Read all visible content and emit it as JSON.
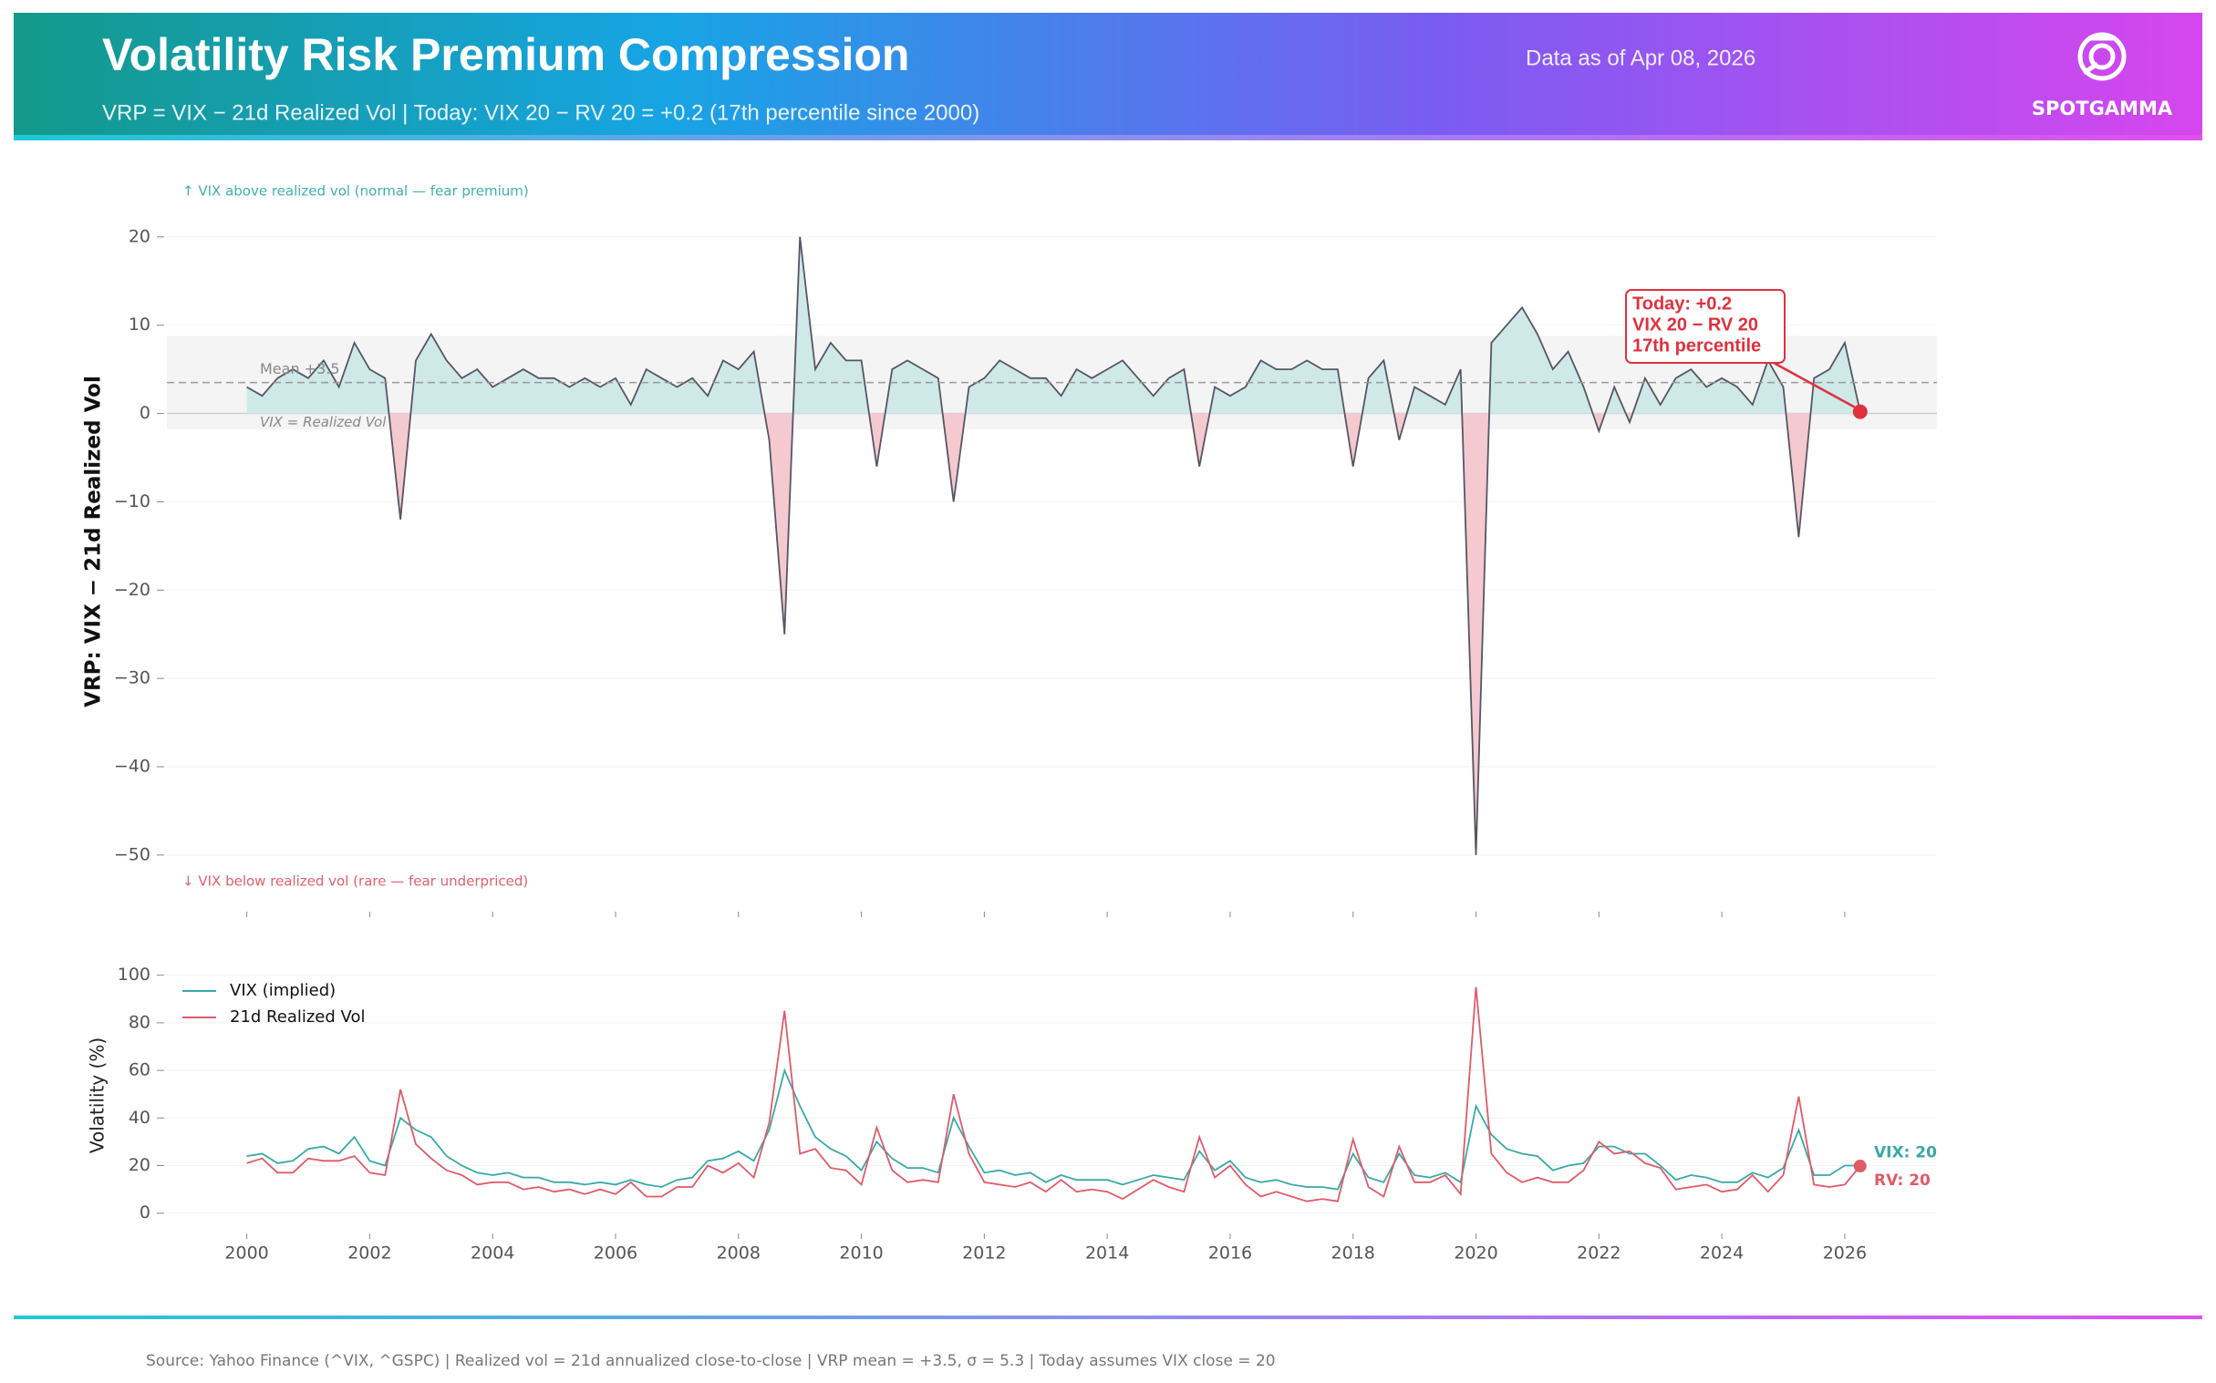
{
  "header": {
    "title": "Volatility Risk Premium Compression",
    "subtitle": "VRP = VIX − 21d Realized Vol | Today: VIX 20 − RV 20 = +0.2 (17th percentile since 2000)",
    "date": "Data as of Apr 08, 2026",
    "logo": "SPOTGAMMA"
  },
  "chart_data": [
    {
      "type": "area",
      "y_label": "VRP: VIX − 21d Realized Vol",
      "color": "#565663",
      "fill_above": "#cfe8e8",
      "fill_below": "#f4c9cf",
      "xlim": [
        1998.7,
        2027.5
      ],
      "ylim": [
        -56,
        27
      ],
      "xticks": [
        2000,
        2002,
        2004,
        2006,
        2008,
        2010,
        2012,
        2014,
        2016,
        2018,
        2020,
        2022,
        2024,
        2026
      ],
      "yticks": [
        {
          "value": -50,
          "label": "−50"
        },
        {
          "value": -40,
          "label": "−40"
        },
        {
          "value": -30,
          "label": "−30"
        },
        {
          "value": -20,
          "label": "−20"
        },
        {
          "value": -10,
          "label": "−10"
        },
        0,
        10,
        20
      ],
      "grid": true,
      "sigma_band": [
        -1.8,
        8.8
      ],
      "mean_line": {
        "value": 3.5,
        "label": "Mean +3.5"
      },
      "zero_label": "VIX = Realized Vol",
      "note_above": "↑ VIX above realized vol (normal — fear premium)",
      "note_below": "↓ VIX below realized vol (rare — fear underpriced)",
      "today": {
        "x": 2026.25,
        "value": 0.2,
        "lines": [
          "Today: +0.2",
          "VIX 20 − RV 20",
          "17th percentile"
        ],
        "color": "#e0303f"
      },
      "x": [
        2000,
        2000.25,
        2000.5,
        2000.75,
        2001,
        2001.25,
        2001.5,
        2001.75,
        2002,
        2002.25,
        2002.5,
        2002.75,
        2003,
        2003.25,
        2003.5,
        2003.75,
        2004,
        2004.25,
        2004.5,
        2004.75,
        2005,
        2005.25,
        2005.5,
        2005.75,
        2006,
        2006.25,
        2006.5,
        2006.75,
        2007,
        2007.25,
        2007.5,
        2007.75,
        2008,
        2008.25,
        2008.5,
        2008.75,
        2009,
        2009.25,
        2009.5,
        2009.75,
        2010,
        2010.25,
        2010.5,
        2010.75,
        2011,
        2011.25,
        2011.5,
        2011.75,
        2012,
        2012.25,
        2012.5,
        2012.75,
        2013,
        2013.25,
        2013.5,
        2013.75,
        2014,
        2014.25,
        2014.5,
        2014.75,
        2015,
        2015.25,
        2015.5,
        2015.75,
        2016,
        2016.25,
        2016.5,
        2016.75,
        2017,
        2017.25,
        2017.5,
        2017.75,
        2018,
        2018.25,
        2018.5,
        2018.75,
        2019,
        2019.25,
        2019.5,
        2019.75,
        2020,
        2020.25,
        2020.5,
        2020.75,
        2021,
        2021.25,
        2021.5,
        2021.75,
        2022,
        2022.25,
        2022.5,
        2022.75,
        2023,
        2023.25,
        2023.5,
        2023.75,
        2024,
        2024.25,
        2024.5,
        2024.75,
        2025,
        2025.25,
        2025.5,
        2025.75,
        2026,
        2026.25
      ],
      "values": [
        3,
        2,
        4,
        5,
        4,
        6,
        3,
        8,
        5,
        4,
        -12,
        6,
        9,
        6,
        4,
        5,
        3,
        4,
        5,
        4,
        4,
        3,
        4,
        3,
        4,
        1,
        5,
        4,
        3,
        4,
        2,
        6,
        5,
        7,
        -3,
        -25,
        20,
        5,
        8,
        6,
        6,
        -6,
        5,
        6,
        5,
        4,
        -10,
        3,
        4,
        6,
        5,
        4,
        4,
        2,
        5,
        4,
        5,
        6,
        4,
        2,
        4,
        5,
        -6,
        3,
        2,
        3,
        6,
        5,
        5,
        6,
        5,
        5,
        -6,
        4,
        6,
        -3,
        3,
        2,
        1,
        5,
        -50,
        8,
        10,
        12,
        9,
        5,
        7,
        3,
        -2,
        3,
        -1,
        4,
        1,
        4,
        5,
        3,
        4,
        3,
        1,
        6,
        3,
        -14,
        4,
        5,
        8,
        0.2
      ]
    },
    {
      "type": "line",
      "y_label": "Volatility (%)",
      "xlim": [
        1998.7,
        2027.5
      ],
      "ylim": [
        -7,
        106
      ],
      "xticks": [
        2000,
        2002,
        2004,
        2006,
        2008,
        2010,
        2012,
        2014,
        2016,
        2018,
        2020,
        2022,
        2024,
        2026
      ],
      "yticks": [
        0,
        20,
        40,
        60,
        80,
        100
      ],
      "grid": true,
      "legend": "upper left",
      "end_labels": [
        "VIX: 20",
        "RV: 20"
      ],
      "x": [
        2000,
        2000.25,
        2000.5,
        2000.75,
        2001,
        2001.25,
        2001.5,
        2001.75,
        2002,
        2002.25,
        2002.5,
        2002.75,
        2003,
        2003.25,
        2003.5,
        2003.75,
        2004,
        2004.25,
        2004.5,
        2004.75,
        2005,
        2005.25,
        2005.5,
        2005.75,
        2006,
        2006.25,
        2006.5,
        2006.75,
        2007,
        2007.25,
        2007.5,
        2007.75,
        2008,
        2008.25,
        2008.5,
        2008.75,
        2009,
        2009.25,
        2009.5,
        2009.75,
        2010,
        2010.25,
        2010.5,
        2010.75,
        2011,
        2011.25,
        2011.5,
        2011.75,
        2012,
        2012.25,
        2012.5,
        2012.75,
        2013,
        2013.25,
        2013.5,
        2013.75,
        2014,
        2014.25,
        2014.5,
        2014.75,
        2015,
        2015.25,
        2015.5,
        2015.75,
        2016,
        2016.25,
        2016.5,
        2016.75,
        2017,
        2017.25,
        2017.5,
        2017.75,
        2018,
        2018.25,
        2018.5,
        2018.75,
        2019,
        2019.25,
        2019.5,
        2019.75,
        2020,
        2020.25,
        2020.5,
        2020.75,
        2021,
        2021.25,
        2021.5,
        2021.75,
        2022,
        2022.25,
        2022.5,
        2022.75,
        2023,
        2023.25,
        2023.5,
        2023.75,
        2024,
        2024.25,
        2024.5,
        2024.75,
        2025,
        2025.25,
        2025.5,
        2025.75,
        2026,
        2026.25
      ],
      "series": [
        {
          "name": "VIX (implied)",
          "color": "#3aa8a8",
          "values": [
            24,
            25,
            21,
            22,
            27,
            28,
            25,
            32,
            22,
            20,
            40,
            35,
            32,
            24,
            20,
            17,
            16,
            17,
            15,
            15,
            13,
            13,
            12,
            13,
            12,
            14,
            12,
            11,
            14,
            15,
            22,
            23,
            26,
            22,
            35,
            60,
            45,
            32,
            27,
            24,
            18,
            30,
            23,
            19,
            19,
            17,
            40,
            28,
            17,
            18,
            16,
            17,
            13,
            16,
            14,
            14,
            14,
            12,
            14,
            16,
            15,
            14,
            26,
            18,
            22,
            15,
            13,
            14,
            12,
            11,
            11,
            10,
            25,
            15,
            13,
            25,
            16,
            15,
            17,
            13,
            45,
            33,
            27,
            25,
            24,
            18,
            20,
            21,
            28,
            28,
            25,
            25,
            20,
            14,
            16,
            15,
            13,
            13,
            17,
            15,
            19,
            35,
            16,
            16,
            20,
            20
          ]
        },
        {
          "name": "21d Realized Vol",
          "color": "#e05a68",
          "values": [
            21,
            23,
            17,
            17,
            23,
            22,
            22,
            24,
            17,
            16,
            52,
            29,
            23,
            18,
            16,
            12,
            13,
            13,
            10,
            11,
            9,
            10,
            8,
            10,
            8,
            13,
            7,
            7,
            11,
            11,
            20,
            17,
            21,
            15,
            38,
            85,
            25,
            27,
            19,
            18,
            12,
            36,
            18,
            13,
            14,
            13,
            50,
            25,
            13,
            12,
            11,
            13,
            9,
            14,
            9,
            10,
            9,
            6,
            10,
            14,
            11,
            9,
            32,
            15,
            20,
            12,
            7,
            9,
            7,
            5,
            6,
            5,
            31,
            11,
            7,
            28,
            13,
            13,
            16,
            8,
            95,
            25,
            17,
            13,
            15,
            13,
            13,
            18,
            30,
            25,
            26,
            21,
            19,
            10,
            11,
            12,
            9,
            10,
            16,
            9,
            16,
            49,
            12,
            11,
            12,
            19.8
          ]
        }
      ]
    }
  ],
  "footer": {
    "source": "Source: Yahoo Finance (^VIX, ^GSPC) | Realized vol = 21d annualized close-to-close | VRP mean = +3.5, σ = 5.3 | Today assumes VIX close = 20"
  }
}
